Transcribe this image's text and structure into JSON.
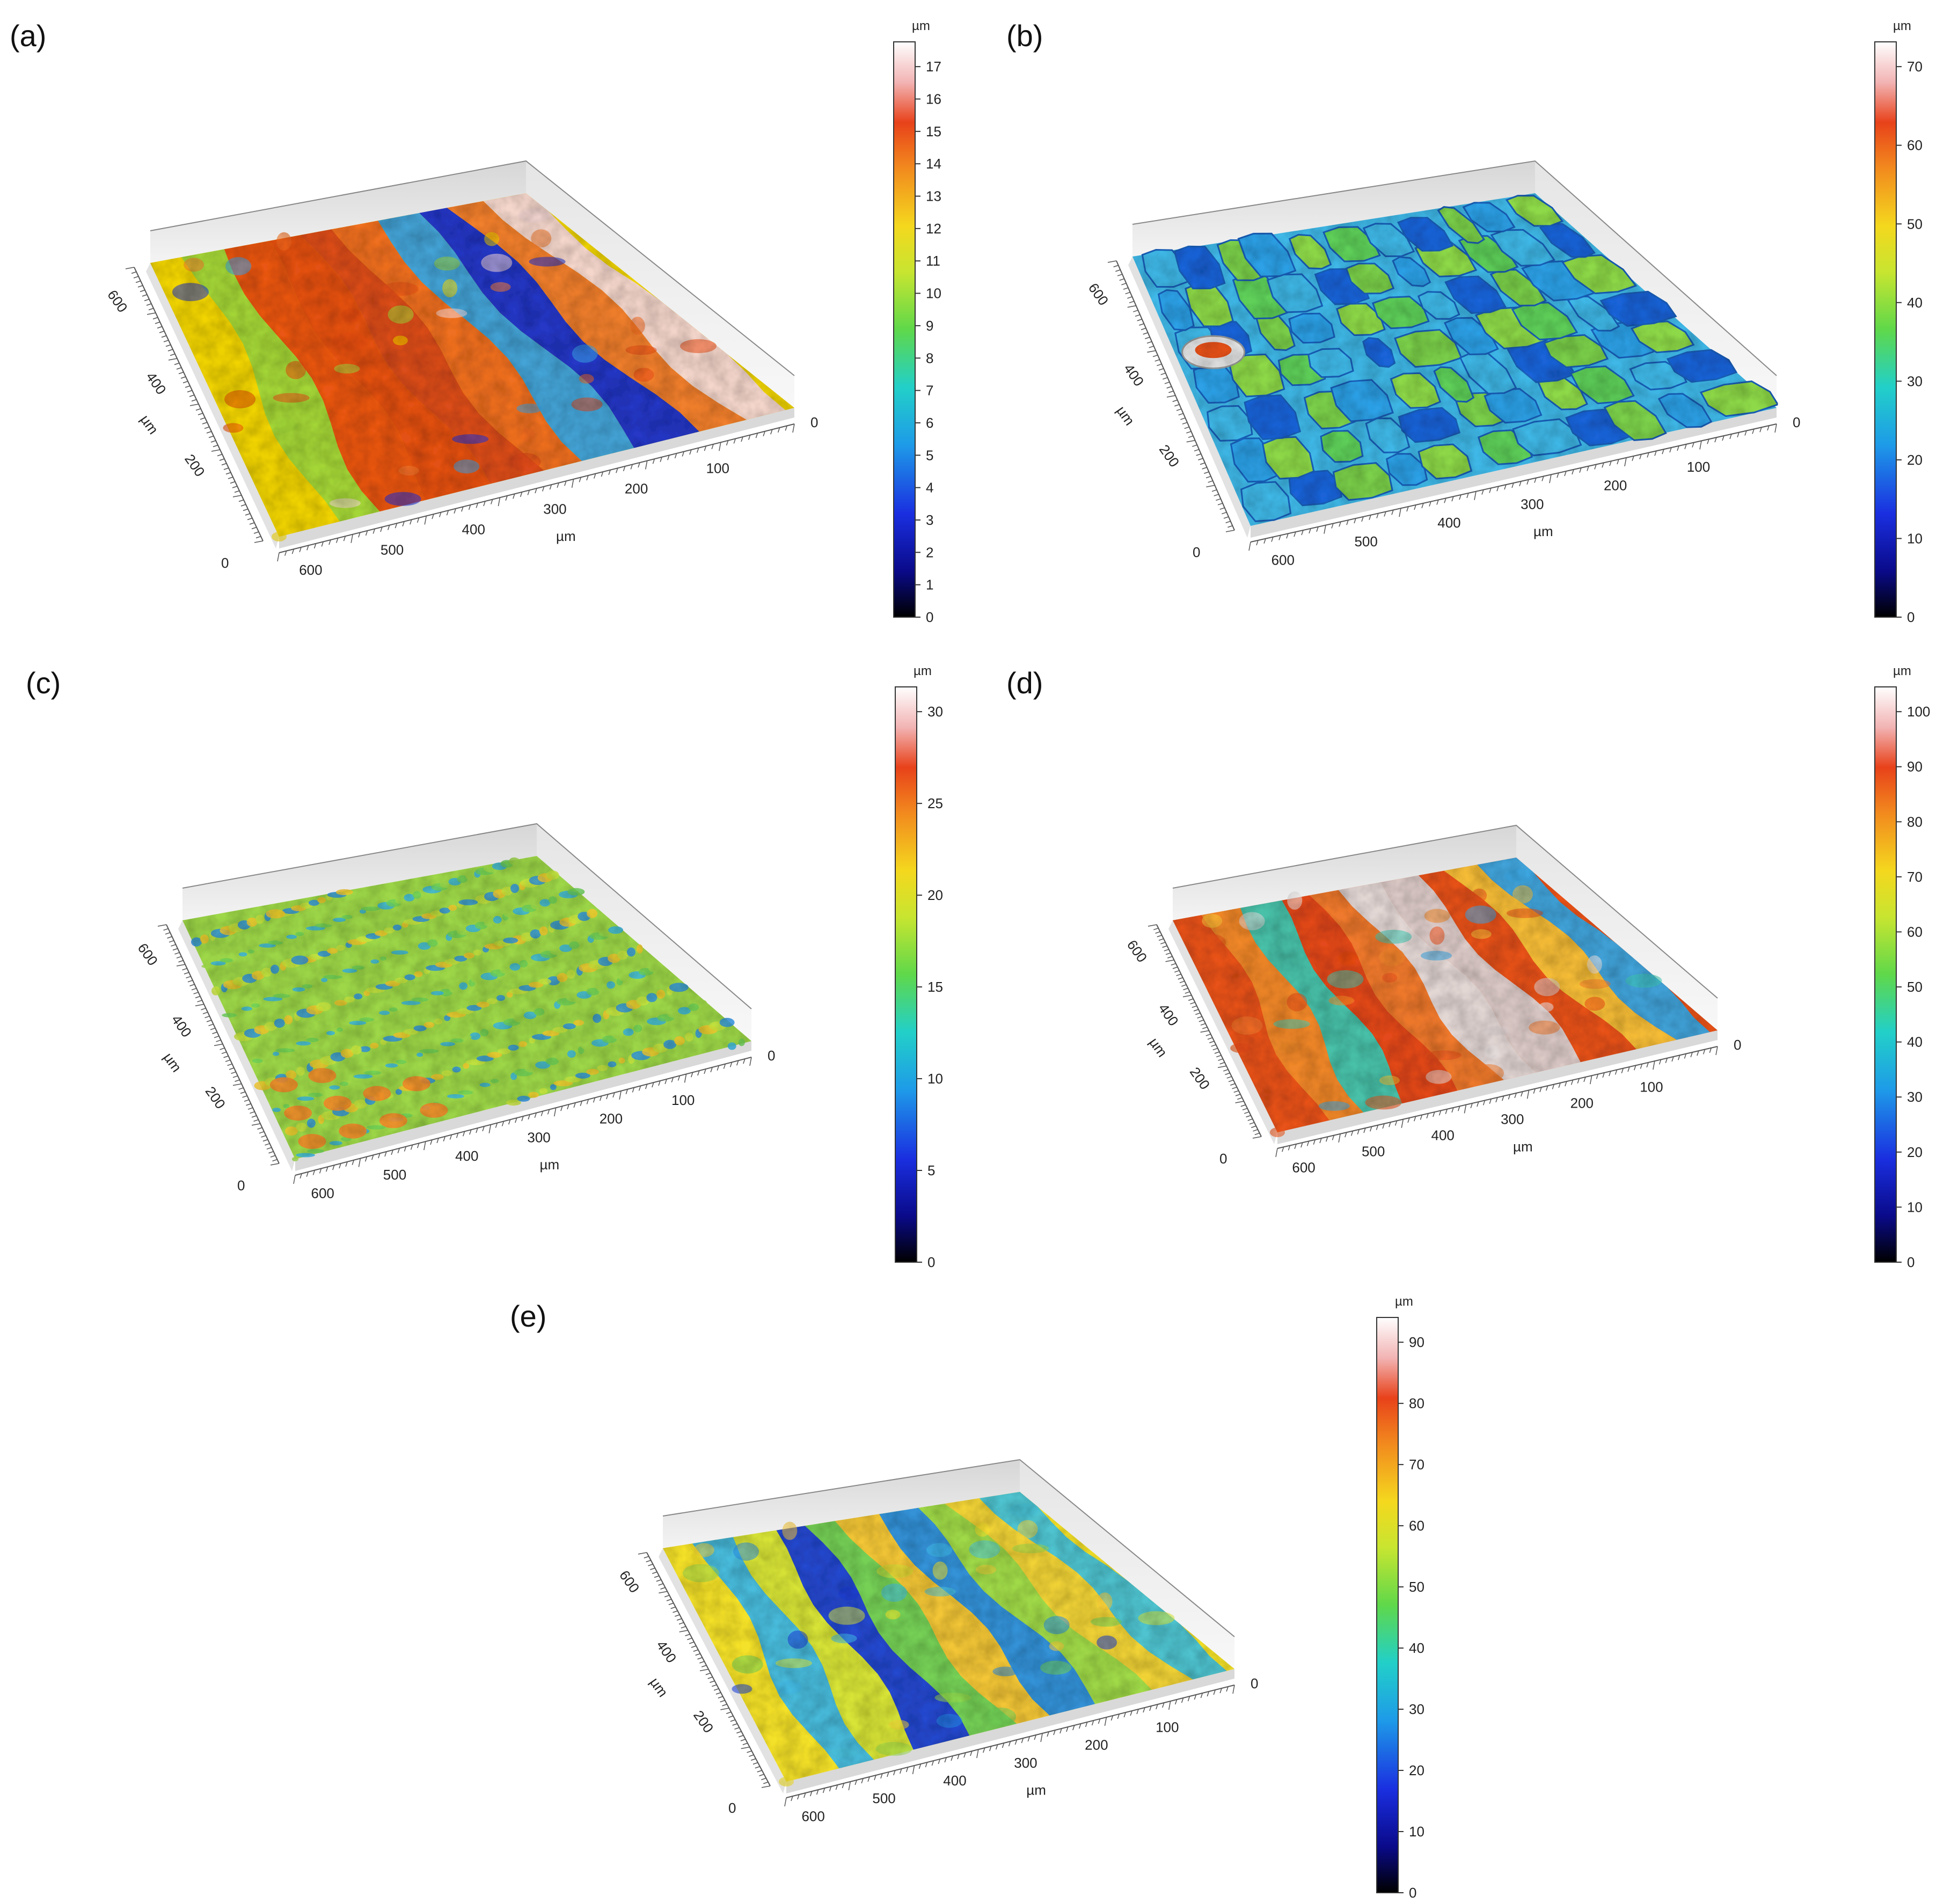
{
  "figure": {
    "panels": [
      {
        "label": "(a)",
        "unit": "µm",
        "colorbar_ticks": [
          "0",
          "1",
          "2",
          "3",
          "4",
          "5",
          "6",
          "7",
          "8",
          "9",
          "10",
          "11",
          "12",
          "13",
          "14",
          "15",
          "16",
          "17"
        ],
        "x_ticks": [
          "600",
          "500",
          "400",
          "300",
          "200",
          "100"
        ],
        "y_ticks": [
          "600",
          "400",
          "200"
        ],
        "zero_left": "0",
        "zero_right": "0",
        "x_unit": "µm",
        "y_unit": "µm",
        "surface_pattern": "stripes",
        "surface_colors": [
          "#f0d400",
          "#9fd63a",
          "#e8501a",
          "#e34a16",
          "#d9471c",
          "#ee6a22",
          "#3aa0e0",
          "#1b2fd0",
          "#ef7a30",
          "#f3d6d6"
        ]
      },
      {
        "label": "(b)",
        "unit": "µm",
        "colorbar_ticks": [
          "0",
          "10",
          "20",
          "30",
          "40",
          "50",
          "60",
          "70"
        ],
        "x_ticks": [
          "600",
          "500",
          "400",
          "300",
          "200",
          "100"
        ],
        "y_ticks": [
          "600",
          "400",
          "200"
        ],
        "zero_left": "0",
        "zero_right": "0",
        "x_unit": "µm",
        "y_unit": "µm",
        "surface_pattern": "cells",
        "surface_colors": [
          "#3fb7e6",
          "#5fcf5a",
          "#8ed94a",
          "#2ea0e6",
          "#7bd04b",
          "#1e64d8"
        ]
      },
      {
        "label": "(c)",
        "unit": "µm",
        "colorbar_ticks": [
          "0",
          "5",
          "10",
          "15",
          "20",
          "25",
          "30"
        ],
        "x_ticks": [
          "600",
          "500",
          "400",
          "300",
          "200",
          "100"
        ],
        "y_ticks": [
          "600",
          "400",
          "200"
        ],
        "zero_left": "0",
        "zero_right": "0",
        "x_unit": "µm",
        "y_unit": "µm",
        "surface_pattern": "speckle",
        "surface_colors": [
          "#9ed84a",
          "#c7e43c",
          "#35b2e3",
          "#2a8fe0",
          "#6bcf58",
          "#f2c62a"
        ]
      },
      {
        "label": "(d)",
        "unit": "µm",
        "colorbar_ticks": [
          "0",
          "10",
          "20",
          "30",
          "40",
          "50",
          "60",
          "70",
          "80",
          "90",
          "100"
        ],
        "x_ticks": [
          "600",
          "500",
          "400",
          "300",
          "200",
          "100"
        ],
        "y_ticks": [
          "600",
          "400",
          "200"
        ],
        "zero_left": "0",
        "zero_right": "0",
        "x_unit": "µm",
        "y_unit": "µm",
        "surface_pattern": "stripes",
        "surface_colors": [
          "#e8521d",
          "#f08a2c",
          "#3fc6b0",
          "#e34a1a",
          "#ef7b30",
          "#e3dede",
          "#dcd2d2",
          "#e8521d",
          "#f6c23a",
          "#3aa8e4"
        ]
      },
      {
        "label": "(e)",
        "unit": "µm",
        "colorbar_ticks": [
          "0",
          "10",
          "20",
          "30",
          "40",
          "50",
          "60",
          "70",
          "80",
          "90"
        ],
        "x_ticks": [
          "600",
          "500",
          "400",
          "300",
          "200",
          "100"
        ],
        "y_ticks": [
          "600",
          "400",
          "200"
        ],
        "zero_left": "0",
        "zero_right": "0",
        "x_unit": "µm",
        "y_unit": "µm",
        "surface_pattern": "stripes",
        "surface_colors": [
          "#f3e02a",
          "#3fb8e6",
          "#d6e43a",
          "#1b3fd8",
          "#6fcf58",
          "#f2c43a",
          "#2a8de0",
          "#9bd94c",
          "#f0d23a",
          "#47c1d8"
        ]
      }
    ]
  }
}
